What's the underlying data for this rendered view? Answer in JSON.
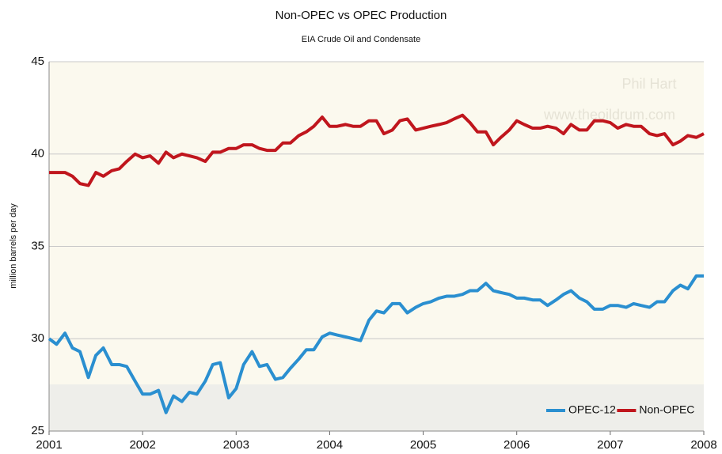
{
  "chart_data": {
    "type": "line",
    "title": "Non-OPEC vs OPEC Production",
    "subtitle": "EIA Crude Oil and Condensate",
    "y_label": "million barrels per day",
    "watermark": [
      "Phil Hart",
      "www.theoildrum.com"
    ],
    "x": [
      2001,
      2001.08,
      2001.17,
      2001.25,
      2001.33,
      2001.42,
      2001.5,
      2001.58,
      2001.67,
      2001.75,
      2001.83,
      2001.92,
      2002,
      2002.08,
      2002.17,
      2002.25,
      2002.33,
      2002.42,
      2002.5,
      2002.58,
      2002.67,
      2002.75,
      2002.83,
      2002.92,
      2003,
      2003.08,
      2003.17,
      2003.25,
      2003.33,
      2003.42,
      2003.5,
      2003.58,
      2003.67,
      2003.75,
      2003.83,
      2003.92,
      2004,
      2004.08,
      2004.17,
      2004.25,
      2004.33,
      2004.42,
      2004.5,
      2004.58,
      2004.67,
      2004.75,
      2004.83,
      2004.92,
      2005,
      2005.08,
      2005.17,
      2005.25,
      2005.33,
      2005.42,
      2005.5,
      2005.58,
      2005.67,
      2005.75,
      2005.83,
      2005.92,
      2006,
      2006.08,
      2006.17,
      2006.25,
      2006.33,
      2006.42,
      2006.5,
      2006.58,
      2006.67,
      2006.75,
      2006.83,
      2006.92,
      2007,
      2007.08,
      2007.17,
      2007.25,
      2007.33,
      2007.42,
      2007.5,
      2007.58,
      2007.67,
      2007.75,
      2007.83,
      2007.92,
      2008
    ],
    "series": [
      {
        "name": "OPEC-12",
        "color": "#2a8fd0",
        "values": [
          30.0,
          29.7,
          30.3,
          29.5,
          29.3,
          27.9,
          29.1,
          29.5,
          28.6,
          28.6,
          28.5,
          27.7,
          27.0,
          27.0,
          27.2,
          26.0,
          26.9,
          26.6,
          27.1,
          27.0,
          27.7,
          28.6,
          28.7,
          26.8,
          27.3,
          28.6,
          29.3,
          28.5,
          28.6,
          27.8,
          27.9,
          28.4,
          28.9,
          29.4,
          29.4,
          30.1,
          30.3,
          30.2,
          30.1,
          30.0,
          29.9,
          31.0,
          31.5,
          31.4,
          31.9,
          31.9,
          31.4,
          31.7,
          31.9,
          32.0,
          32.2,
          32.3,
          32.3,
          32.4,
          32.6,
          32.6,
          33.0,
          32.6,
          32.5,
          32.4,
          32.2,
          32.2,
          32.1,
          32.1,
          31.8,
          32.1,
          32.4,
          32.6,
          32.2,
          32.0,
          31.6,
          31.6,
          31.8,
          31.8,
          31.7,
          31.9,
          31.8,
          31.7,
          32.0,
          32.0,
          32.6,
          32.9,
          32.7,
          33.4,
          33.4
        ]
      },
      {
        "name": "Non-OPEC",
        "color": "#c0161d",
        "values": [
          39.0,
          39.0,
          39.0,
          38.8,
          38.4,
          38.3,
          39.0,
          38.8,
          39.1,
          39.2,
          39.6,
          40.0,
          39.8,
          39.9,
          39.5,
          40.1,
          39.8,
          40.0,
          39.9,
          39.8,
          39.6,
          40.1,
          40.1,
          40.3,
          40.3,
          40.5,
          40.5,
          40.3,
          40.2,
          40.2,
          40.6,
          40.6,
          41.0,
          41.2,
          41.5,
          42.0,
          41.5,
          41.5,
          41.6,
          41.5,
          41.5,
          41.8,
          41.8,
          41.1,
          41.3,
          41.8,
          41.9,
          41.3,
          41.4,
          41.5,
          41.6,
          41.7,
          41.9,
          42.1,
          41.7,
          41.2,
          41.2,
          40.5,
          40.9,
          41.3,
          41.8,
          41.6,
          41.4,
          41.4,
          41.5,
          41.4,
          41.1,
          41.6,
          41.3,
          41.3,
          41.8,
          41.8,
          41.7,
          41.4,
          41.6,
          41.5,
          41.5,
          41.1,
          41.0,
          41.1,
          40.5,
          40.7,
          41.0,
          40.9,
          41.1
        ]
      }
    ],
    "xlim": [
      2001,
      2008
    ],
    "xticks": [
      2001,
      2002,
      2003,
      2004,
      2005,
      2006,
      2007,
      2008
    ],
    "ylim": [
      25,
      45
    ],
    "yticks": [
      25,
      30,
      35,
      40,
      45
    ],
    "grid": true,
    "legend": "lower right"
  }
}
